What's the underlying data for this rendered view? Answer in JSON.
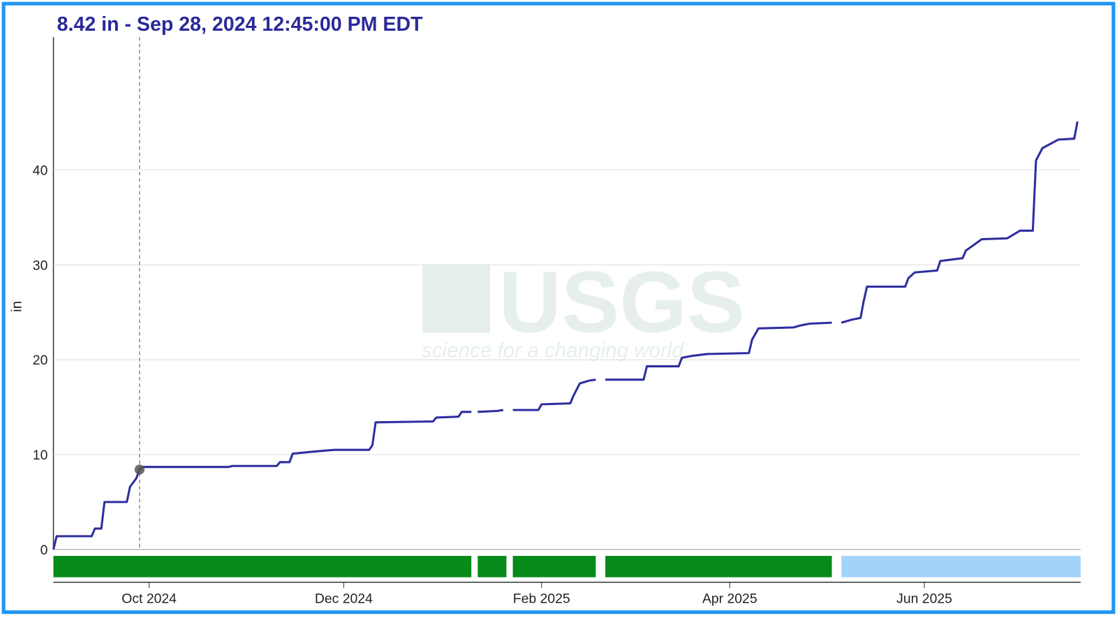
{
  "chart_data": {
    "type": "line",
    "title": "8.42 in - Sep 28, 2024 12:45:00 PM EDT",
    "y_label": "in",
    "watermark": {
      "text": "USGS",
      "tagline": "science for a changing world"
    },
    "color": "#2e2ea0",
    "x": [
      "2024-09-01",
      "2024-09-02",
      "2024-09-13",
      "2024-09-14",
      "2024-09-16",
      "2024-09-17",
      "2024-09-24",
      "2024-09-25",
      "2024-09-27",
      "2024-09-28",
      "2024-09-29",
      "2024-10-26",
      "2024-10-27",
      "2024-11-10",
      "2024-11-11",
      "2024-11-14",
      "2024-11-15",
      "2024-11-21",
      "2024-11-28",
      "2024-12-09",
      "2024-12-10",
      "2024-12-11",
      "2024-12-29",
      "2024-12-30",
      "2025-01-06",
      "2025-01-07",
      "2025-01-10",
      "2025-01-11",
      "2025-01-12",
      "2025-01-18",
      "2025-01-20",
      "2025-01-21",
      "2025-01-23",
      "2025-01-31",
      "2025-02-01",
      "2025-02-10",
      "2025-02-11",
      "2025-02-13",
      "2025-02-16",
      "2025-02-18",
      "2025-02-19",
      "2025-02-21",
      "2025-03-05",
      "2025-03-06",
      "2025-03-16",
      "2025-03-17",
      "2025-03-20",
      "2025-03-25",
      "2025-04-07",
      "2025-04-08",
      "2025-04-10",
      "2025-04-21",
      "2025-04-23",
      "2025-04-26",
      "2025-05-03",
      "2025-05-04",
      "2025-05-06",
      "2025-05-09",
      "2025-05-12",
      "2025-05-13",
      "2025-05-14",
      "2025-05-26",
      "2025-05-27",
      "2025-05-29",
      "2025-06-05",
      "2025-06-06",
      "2025-06-13",
      "2025-06-14",
      "2025-06-19",
      "2025-06-27",
      "2025-07-01",
      "2025-07-05",
      "2025-07-06",
      "2025-07-08",
      "2025-07-13",
      "2025-07-18",
      "2025-07-19"
    ],
    "values": [
      0,
      1.4,
      1.4,
      2.2,
      2.2,
      5.0,
      5.0,
      6.6,
      7.5,
      8.42,
      8.7,
      8.7,
      8.8,
      8.8,
      9.2,
      9.2,
      10.1,
      10.3,
      10.5,
      10.5,
      11,
      13.4,
      13.5,
      13.9,
      14.0,
      14.5,
      14.5,
      null,
      14.5,
      14.6,
      14.7,
      null,
      14.7,
      14.7,
      15.3,
      15.4,
      16.2,
      17.5,
      17.8,
      17.9,
      null,
      17.9,
      17.9,
      19.3,
      19.3,
      20.2,
      20.4,
      20.6,
      20.7,
      22.1,
      23.3,
      23.4,
      23.6,
      23.8,
      23.9,
      null,
      23.9,
      24.2,
      24.4,
      26.2,
      27.7,
      27.7,
      28.6,
      29.2,
      29.4,
      30.4,
      30.7,
      31.5,
      32.7,
      32.8,
      33.6,
      33.6,
      41.0,
      42.3,
      43.2,
      43.3,
      45.1
    ],
    "cursor": {
      "x": "2024-09-28",
      "value": 8.42
    },
    "status_bars": [
      {
        "start": "2024-09-01",
        "end": "2025-01-10",
        "color": "#078a19"
      },
      {
        "start": "2025-01-12",
        "end": "2025-01-21",
        "color": "#078a19"
      },
      {
        "start": "2025-01-23",
        "end": "2025-02-18",
        "color": "#078a19"
      },
      {
        "start": "2025-02-21",
        "end": "2025-05-03",
        "color": "#078a19"
      },
      {
        "start": "2025-05-06",
        "end": "2025-07-20",
        "color": "#a3d3fb"
      }
    ],
    "xlim": [
      "2024-09-01",
      "2025-07-20"
    ],
    "xticks": [
      {
        "value": "2024-10-01",
        "label": "Oct 2024"
      },
      {
        "value": "2024-12-01",
        "label": "Dec 2024"
      },
      {
        "value": "2025-02-01",
        "label": "Feb 2025"
      },
      {
        "value": "2025-04-01",
        "label": "Apr 2025"
      },
      {
        "value": "2025-06-01",
        "label": "Jun 2025"
      }
    ],
    "ylim": [
      0,
      54
    ],
    "yticks": [
      0,
      10,
      20,
      30,
      40
    ],
    "grid": true
  }
}
